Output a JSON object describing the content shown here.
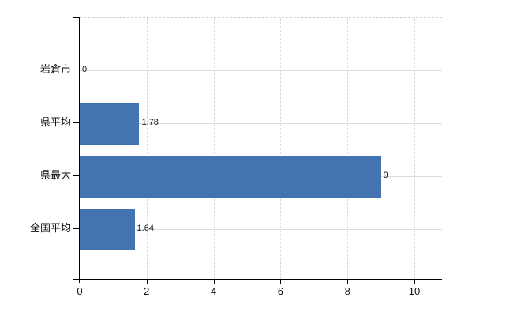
{
  "chart_data": {
    "type": "bar",
    "orientation": "horizontal",
    "title": "",
    "xlabel": "",
    "ylabel": "",
    "categories": [
      "岩倉市",
      "県平均",
      "県最大",
      "全国平均"
    ],
    "values": [
      0,
      1.78,
      9,
      1.64
    ],
    "value_labels": [
      "0",
      "1.78",
      "9",
      "1.64"
    ],
    "x_ticks": [
      0,
      2,
      4,
      6,
      8,
      10
    ],
    "x_tick_labels": [
      "0",
      "2",
      "4",
      "6",
      "8",
      "10"
    ],
    "xlim": [
      0,
      10.83
    ],
    "grid": true,
    "legend": false,
    "bar_color": "#4473b2",
    "horizontal_gridline_color": "#dadfda",
    "vertical_gridline_color": "#d9d9d9",
    "axis_color": "#000000",
    "text_color": "#111111",
    "background_color": "#ffffff"
  }
}
